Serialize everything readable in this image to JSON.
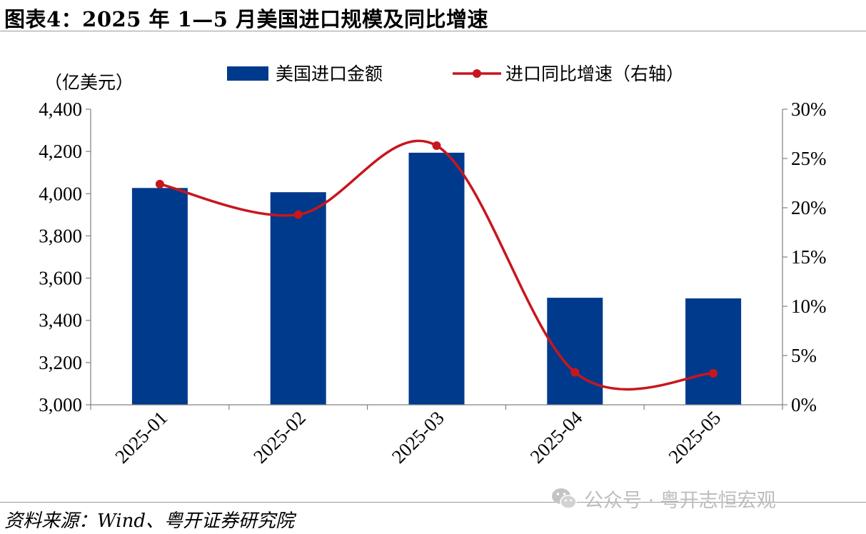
{
  "title": "图表4：2025 年 1—5 月美国进口规模及同比增速",
  "source": "资料来源：Wind、粤开证券研究院",
  "watermark": "公众号 · 粤开志恒宏观",
  "chart_data": {
    "type": "bar",
    "categories": [
      "2025-01",
      "2025-02",
      "2025-03",
      "2025-04",
      "2025-05"
    ],
    "y_unit_label": "（亿美元）",
    "left_axis": {
      "min": 3000,
      "max": 4400,
      "step": 200,
      "tick_labels": [
        "3,000",
        "3,200",
        "3,400",
        "3,600",
        "3,800",
        "4,000",
        "4,200",
        "4,400"
      ]
    },
    "right_axis": {
      "min": 0,
      "max": 30,
      "step": 5,
      "tick_labels": [
        "0%",
        "5%",
        "10%",
        "15%",
        "20%",
        "25%",
        "30%"
      ]
    },
    "legend_position": "top-center",
    "grid": false,
    "series": [
      {
        "name": "美国进口金额",
        "type": "bar",
        "axis": "left",
        "color": "#003a8c",
        "values": [
          4027,
          4007,
          4194,
          3507,
          3504
        ]
      },
      {
        "name": "进口同比增速（右轴）",
        "type": "line",
        "axis": "right",
        "color": "#c8161d",
        "smooth": true,
        "values": [
          22.4,
          19.3,
          26.3,
          3.3,
          3.2
        ]
      }
    ]
  }
}
